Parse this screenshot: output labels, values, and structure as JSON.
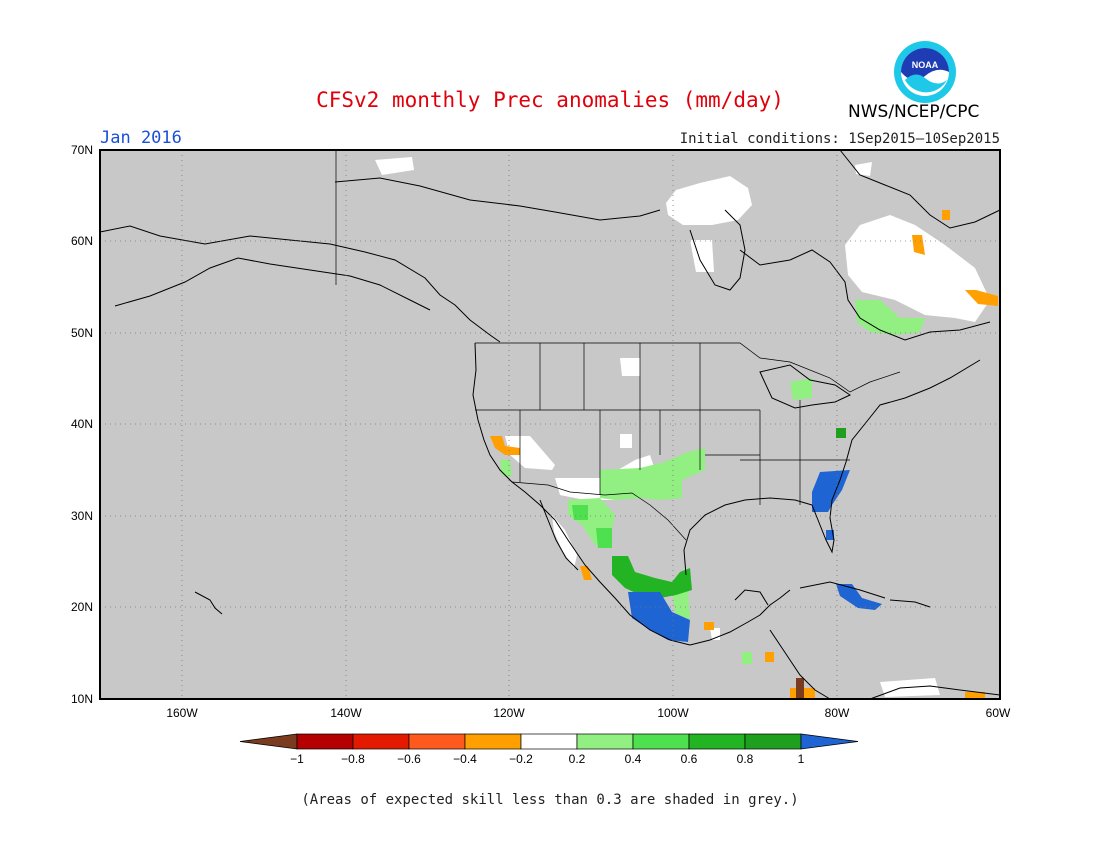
{
  "header": {
    "title": "CFSv2 monthly Prec anomalies (mm/day)",
    "org": "NWS/NCEP/CPC",
    "month": "Jan 2016",
    "initial_conditions": "Initial conditions: 1Sep2015–10Sep2015",
    "logo_text": "NOAA"
  },
  "map": {
    "background_color": "#c8c8c8",
    "lat_labels": [
      "70N",
      "60N",
      "50N",
      "40N",
      "30N",
      "20N",
      "10N"
    ],
    "lon_labels": [
      "160W",
      "140W",
      "120W",
      "100W",
      "80W",
      "60W"
    ],
    "grid": true
  },
  "colorbar": {
    "labels": [
      "−1",
      "−0.8",
      "−0.6",
      "−0.4",
      "−0.2",
      "0.2",
      "0.4",
      "0.6",
      "0.8",
      "1"
    ],
    "colors": [
      "#7a3b1e",
      "#b40000",
      "#e31a00",
      "#ff5a1e",
      "#ffa000",
      "#ffffff",
      "#92ef82",
      "#4fe04f",
      "#23b423",
      "#1ea01e",
      "#1e64d2"
    ]
  },
  "footnote": "(Areas of expected skill less than 0.3 are shaded in grey.)"
}
